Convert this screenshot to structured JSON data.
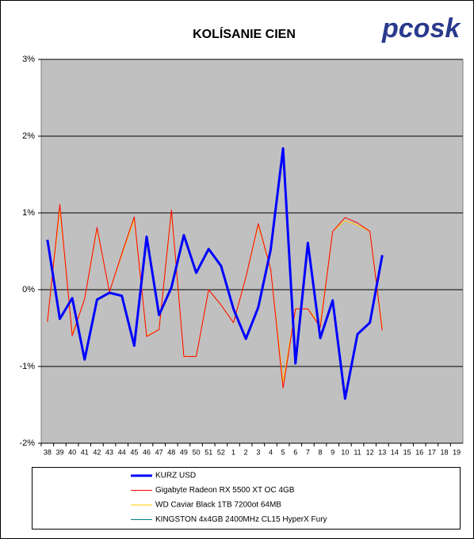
{
  "chart_data": {
    "type": "line",
    "title": "KOLÍSANIE CIEN",
    "logo": "pcosk",
    "categories": [
      "38",
      "39",
      "40",
      "41",
      "42",
      "43",
      "44",
      "45",
      "46",
      "47",
      "48",
      "49",
      "50",
      "51",
      "52",
      "1",
      "2",
      "3",
      "4",
      "5",
      "6",
      "7",
      "8",
      "9",
      "10",
      "11",
      "12",
      "13",
      "14",
      "15",
      "16",
      "17",
      "18",
      "19"
    ],
    "series": [
      {
        "name": "KURZ USD",
        "color": "#0000ff",
        "width": 3,
        "values": [
          0.65,
          -0.38,
          -0.11,
          -0.91,
          -0.13,
          -0.04,
          -0.08,
          -0.73,
          0.69,
          -0.33,
          0.03,
          0.71,
          0.22,
          0.53,
          0.31,
          -0.25,
          -0.64,
          -0.23,
          0.52,
          1.84,
          -0.96,
          0.61,
          -0.63,
          -0.14,
          -1.42,
          -0.58,
          -0.43,
          0.45,
          null,
          null,
          null,
          null,
          null,
          null
        ]
      },
      {
        "name": "Gigabyte Radeon RX 5500 XT OC 4GB",
        "color": "#ff0000",
        "width": 1,
        "values": [
          -0.42,
          1.11,
          -0.6,
          -0.12,
          0.81,
          -0.03,
          0.47,
          0.95,
          -0.61,
          -0.52,
          1.04,
          -0.87,
          -0.87,
          0.0,
          -0.2,
          -0.43,
          0.16,
          0.86,
          0.27,
          -1.28,
          -0.25,
          -0.25,
          -0.49,
          0.76,
          0.94,
          0.87,
          0.76,
          -0.53,
          null,
          null,
          null,
          null,
          null,
          null
        ]
      },
      {
        "name": "WD Caviar Black 1TB 7200ot 64MB",
        "color": "#ffcc00",
        "width": 1,
        "values": [
          -0.42,
          1.05,
          -0.58,
          -0.12,
          0.79,
          -0.03,
          0.45,
          0.92,
          -0.6,
          -0.52,
          1.02,
          -0.87,
          -0.87,
          0.0,
          -0.2,
          -0.43,
          0.16,
          0.84,
          0.27,
          -1.2,
          -0.25,
          -0.25,
          -0.45,
          0.76,
          0.9,
          0.84,
          0.76,
          -0.5,
          null,
          null,
          null,
          null,
          null,
          null
        ]
      },
      {
        "name": "KINGSTON 4x4GB 2400MHz CL15 HyperX Fury",
        "color": "#008080",
        "width": 1,
        "values": [
          null,
          null,
          null,
          null,
          null,
          null,
          null,
          null,
          null,
          null,
          null,
          null,
          null,
          null,
          null,
          null,
          null,
          null,
          null,
          null,
          null,
          null,
          null,
          null,
          null,
          null,
          null,
          null,
          null,
          null,
          null,
          null,
          null,
          null
        ]
      }
    ],
    "ylim": [
      -2,
      3
    ],
    "yticks": [
      {
        "value": -2,
        "label": "-2%"
      },
      {
        "value": -1,
        "label": "-1%"
      },
      {
        "value": 0,
        "label": "0%"
      },
      {
        "value": 1,
        "label": "1%"
      },
      {
        "value": 2,
        "label": "2%"
      },
      {
        "value": 3,
        "label": "3%"
      }
    ],
    "grid": true,
    "plot_background": "#c0c0c0"
  }
}
